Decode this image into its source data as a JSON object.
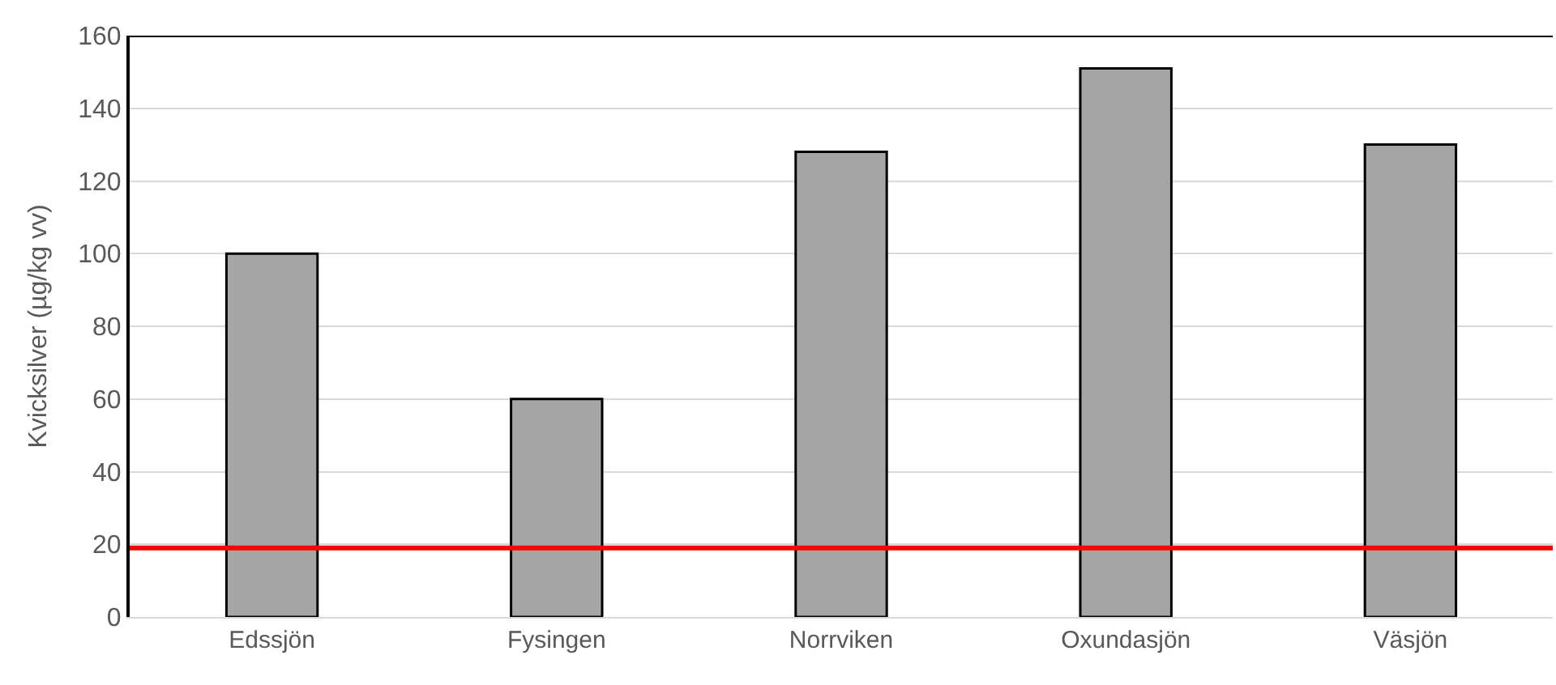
{
  "chart_data": {
    "type": "bar",
    "ylabel": "Kvicksilver (µg/kg vv)",
    "categories": [
      "Edssjön",
      "Fysingen",
      "Norrviken",
      "Oxundasjön",
      "Väsjön"
    ],
    "values": [
      100,
      60,
      128,
      151,
      130
    ],
    "color": "#a5a5a5",
    "ylim": [
      0,
      160
    ],
    "yticks": [
      0,
      20,
      40,
      60,
      80,
      100,
      120,
      140,
      160
    ],
    "grid": "y",
    "ref_lines": [
      {
        "axis": "y",
        "value": 19,
        "color": "#ff0000"
      }
    ]
  }
}
